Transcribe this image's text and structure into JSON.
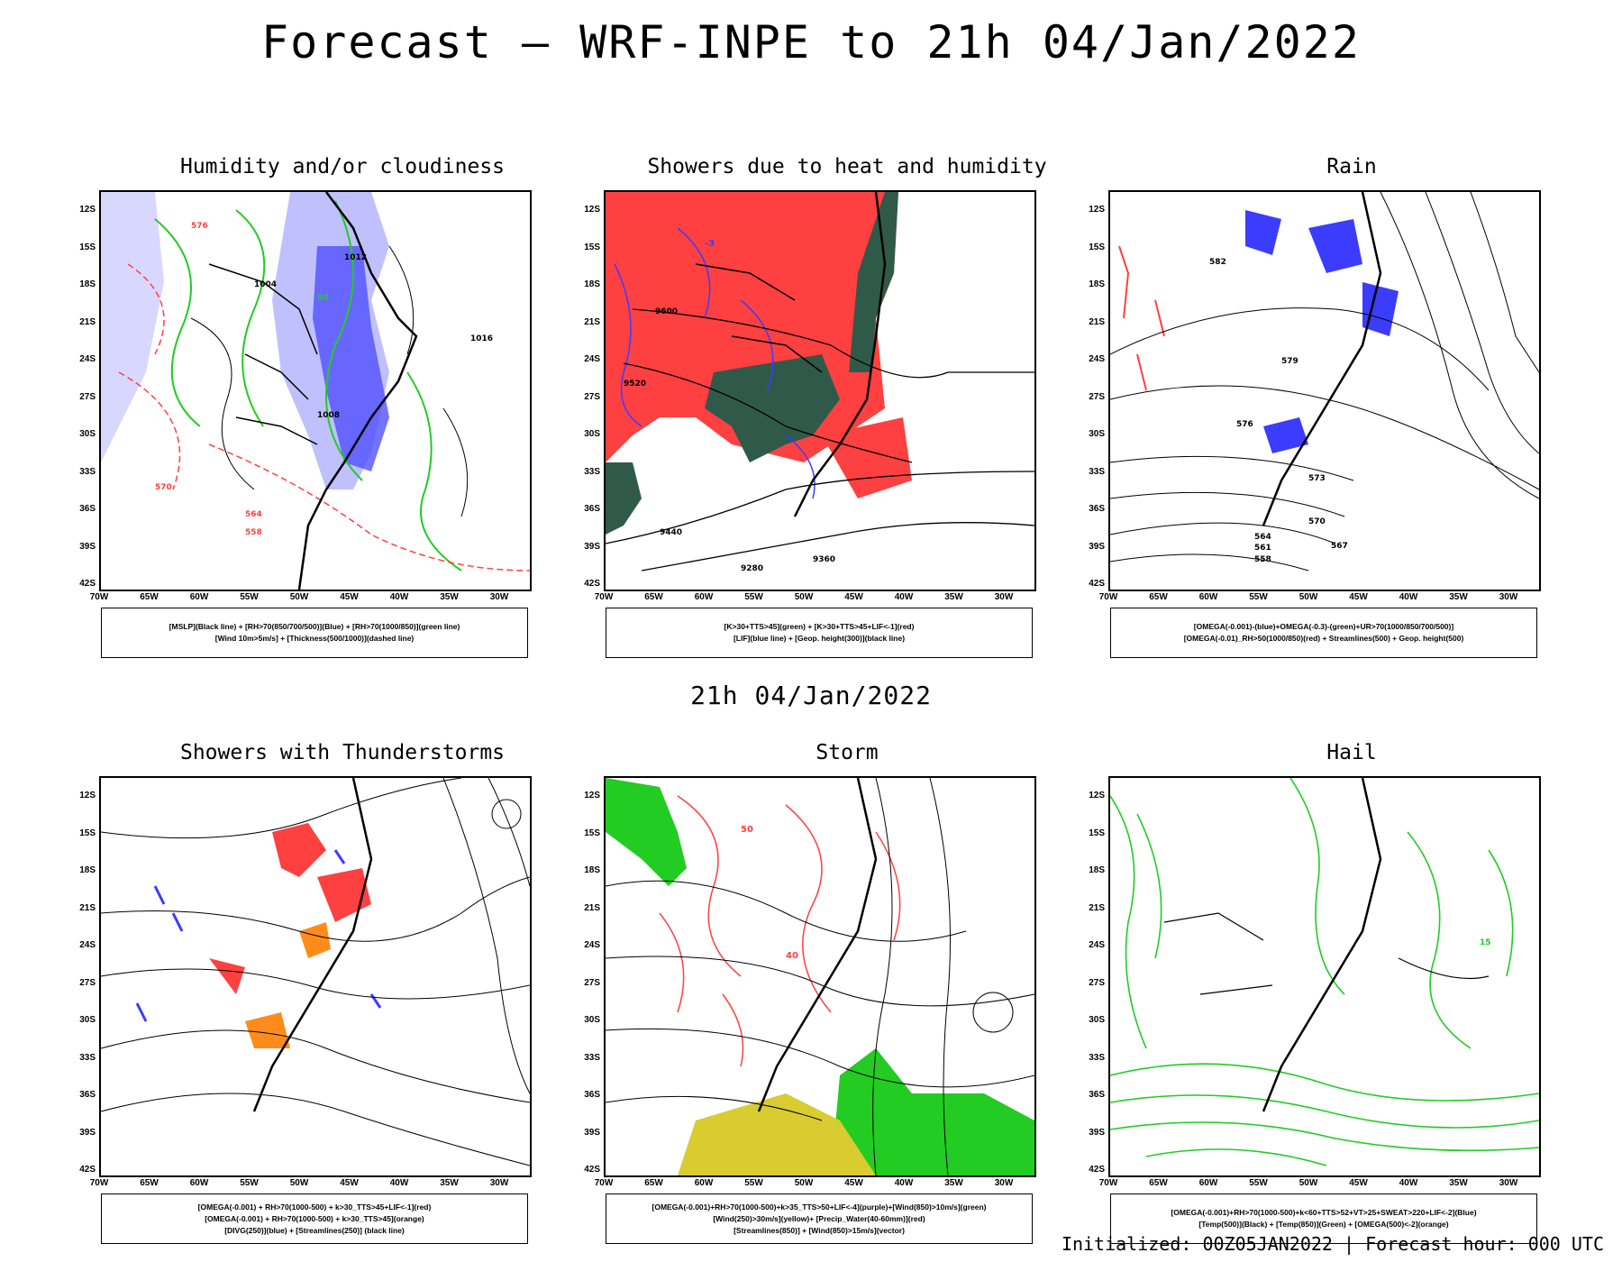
{
  "title": "Forecast — WRF-INPE to 21h 04/Jan/2022",
  "mid_title": "21h 04/Jan/2022",
  "footer": "Initialized: 00Z05JAN2022 | Forecast hour: 000 UTC",
  "lat_labels": [
    "12S",
    "15S",
    "18S",
    "21S",
    "24S",
    "27S",
    "30S",
    "33S",
    "36S",
    "39S",
    "42S"
  ],
  "lon_labels": [
    "70W",
    "65W",
    "60W",
    "55W",
    "50W",
    "45W",
    "40W",
    "35W",
    "30W"
  ],
  "colors": {
    "red": "#ff4040",
    "blue": "#3c3cff",
    "green": "#22cc22",
    "orange": "#ff8c1a",
    "dark_green": "#2f5a4a",
    "yellow": "#d8cc30",
    "light_blue": "#b0b0ff"
  },
  "panels": [
    {
      "title": "Humidity and/or cloudiness",
      "legend": [
        "[MSLP](Black line) + [RH>70(850/700/500)](Blue) + [RH>70(1000/850)](green line)",
        "[Wind 10m>5m/s] + [Thickness(500/1000)](dashed line)"
      ]
    },
    {
      "title": "Showers due to heat and humidity",
      "legend": [
        "[K>30+TTS>45](green) + [K>30+TTS>45+LIF<-1](red)",
        "[LIF](blue line) + [Geop. height(300)](black line)"
      ]
    },
    {
      "title": "Rain",
      "legend": [
        "[OMEGA(-0.001)-(blue)+OMEGA(-0.3)-(green)+UR>70(1000/850/700/500)]",
        "[OMEGA(-0.01)_RH>50(1000/850)(red) + Streamlines(500) + Geop. height(500)"
      ]
    },
    {
      "title": "Showers with Thunderstorms",
      "legend": [
        "[OMEGA(-0.001) + RH>70(1000-500) + k>30_TTS>45+LIF<-1](red)",
        "[OMEGA(-0.001) + RH>70(1000-500) + k>30_TTS>45](orange)",
        "[DIVG(250)](blue) + [Streamlines(250)] (black line)"
      ]
    },
    {
      "title": "Storm",
      "legend": [
        "[OMEGA(-0.001)+RH>70(1000-500)+k>35_TTS>50+LIF<-4](purple)+[Wind(850)>10m/s](green)",
        "[Wind(250)>30m/s](yellow)+ [Precip_Water(40-60mm)](red)",
        "[Streamlines(850)] + [Wind(850)>15m/s](vector)"
      ]
    },
    {
      "title": "Hail",
      "legend": [
        "[OMEGA(-0.001)+RH>70(1000-500)+k<60+TTS>52+VT>25+SWEAT>220+LIF<-2](Blue)",
        "[Temp(500)](Black) + [Temp(850)](Green) + [OMEGA(500)<-2](orange)"
      ]
    }
  ],
  "contour_labels": {
    "p1": [
      "1004",
      "1012",
      "1008",
      "1016",
      "576",
      "570",
      "564",
      "558",
      "90"
    ],
    "p2": [
      "9600",
      "9520",
      "9440",
      "9360",
      "9280",
      "-3"
    ],
    "p3": [
      "582",
      "579",
      "576",
      "573",
      "570",
      "567",
      "564",
      "561",
      "558"
    ],
    "p5": [
      "50",
      "40"
    ],
    "p6": [
      "15"
    ]
  }
}
